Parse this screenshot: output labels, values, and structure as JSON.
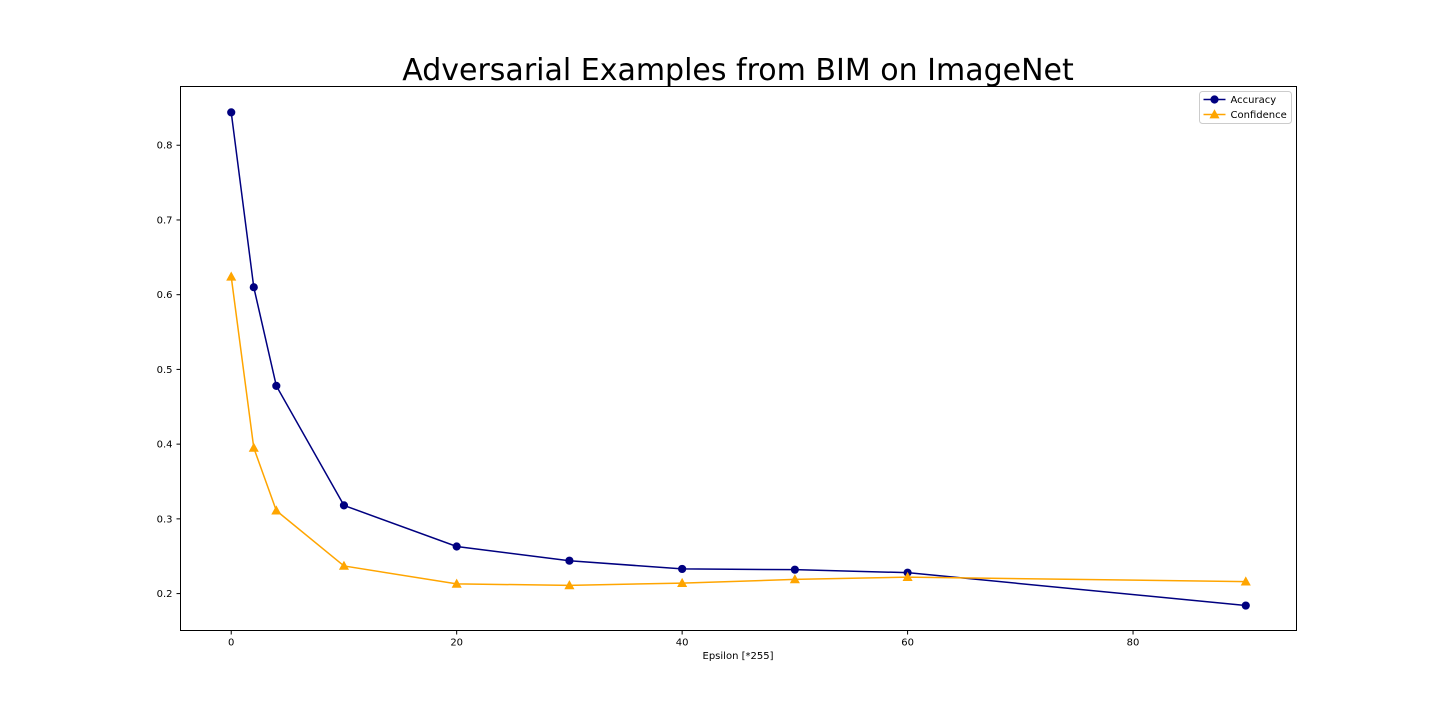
{
  "chart_data": {
    "type": "line",
    "title": "Adversarial Examples from BIM on ImageNet",
    "xlabel": "Epsilon [*255]",
    "ylabel": "",
    "xlim": [
      -4.5,
      94.5
    ],
    "ylim": [
      0.1506,
      0.8786
    ],
    "xticks": [
      0,
      20,
      40,
      60,
      80
    ],
    "yticks": [
      0.2,
      0.3,
      0.4,
      0.5,
      0.6,
      0.7,
      0.8
    ],
    "grid": false,
    "legend_position": "top-right",
    "x": [
      0,
      2,
      4,
      10,
      20,
      30,
      40,
      50,
      60,
      90
    ],
    "series": [
      {
        "name": "Accuracy",
        "color": "#000080",
        "marker": "circle",
        "values": [
          0.844,
          0.61,
          0.478,
          0.318,
          0.263,
          0.244,
          0.233,
          0.232,
          0.228,
          0.184
        ]
      },
      {
        "name": "Confidence",
        "color": "#FFA500",
        "marker": "triangle",
        "values": [
          0.624,
          0.395,
          0.311,
          0.237,
          0.213,
          0.211,
          0.214,
          0.219,
          0.222,
          0.216
        ]
      }
    ]
  }
}
